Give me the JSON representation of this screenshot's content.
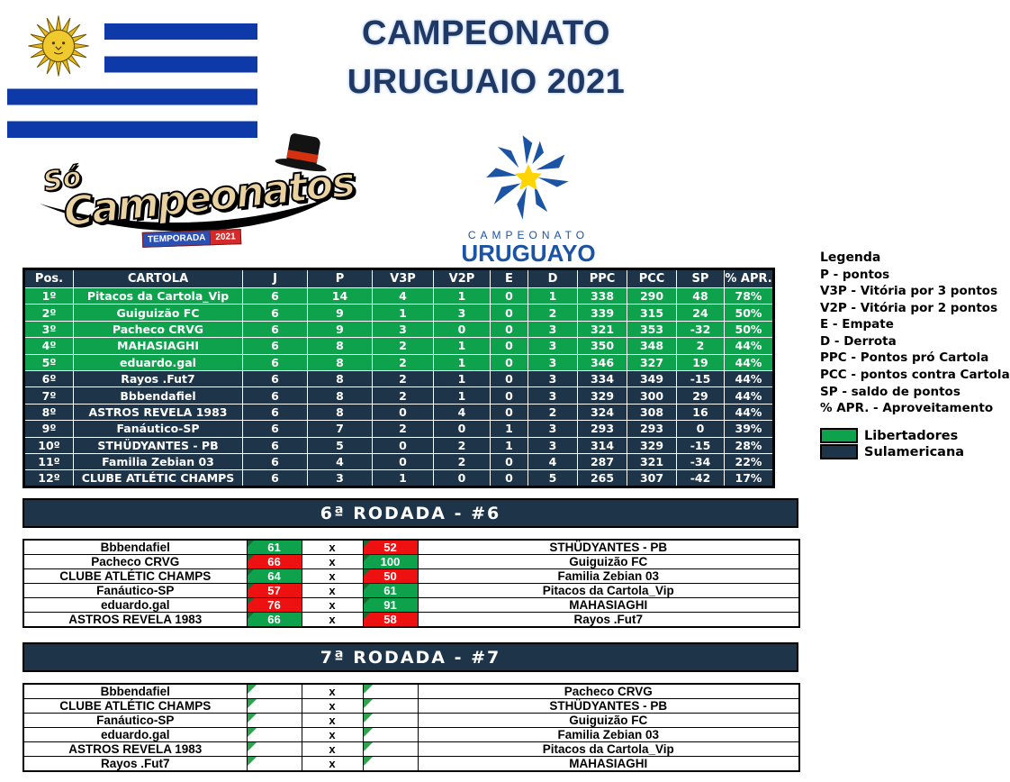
{
  "header": {
    "title_line1": "CAMPEONATO",
    "title_line2": "URUGUAIO 2021",
    "so_campeonatos": {
      "so": "Só",
      "name": "Campeonatos",
      "banner_left": "TEMPORADA",
      "banner_right": "2021"
    },
    "uruguayo_logo": {
      "line1": "CAMPEONATO",
      "line2": "URUGUAYO"
    }
  },
  "standings": {
    "columns": [
      "Pos.",
      "CARTOLA",
      "J",
      "P",
      "V3P",
      "V2P",
      "E",
      "D",
      "PPC",
      "PCC",
      "SP",
      "% APR."
    ],
    "rows": [
      {
        "pos": "1º",
        "cartola": "Pitacos da Cartola_Vip",
        "j": 6,
        "p": 14,
        "v3p": 4,
        "v2p": 1,
        "e": 0,
        "d": 1,
        "ppc": 338,
        "pcc": 290,
        "sp": 48,
        "apr": "78%",
        "zone": "libertadores"
      },
      {
        "pos": "2º",
        "cartola": "Guiguizão FC",
        "j": 6,
        "p": 9,
        "v3p": 1,
        "v2p": 3,
        "e": 0,
        "d": 2,
        "ppc": 339,
        "pcc": 315,
        "sp": 24,
        "apr": "50%",
        "zone": "libertadores"
      },
      {
        "pos": "3º",
        "cartola": "Pacheco CRVG",
        "j": 6,
        "p": 9,
        "v3p": 3,
        "v2p": 0,
        "e": 0,
        "d": 3,
        "ppc": 321,
        "pcc": 353,
        "sp": -32,
        "apr": "50%",
        "zone": "libertadores"
      },
      {
        "pos": "4º",
        "cartola": "MAHASIAGHI",
        "j": 6,
        "p": 8,
        "v3p": 2,
        "v2p": 1,
        "e": 0,
        "d": 3,
        "ppc": 350,
        "pcc": 348,
        "sp": 2,
        "apr": "44%",
        "zone": "libertadores"
      },
      {
        "pos": "5º",
        "cartola": "eduardo.gal",
        "j": 6,
        "p": 8,
        "v3p": 2,
        "v2p": 1,
        "e": 0,
        "d": 3,
        "ppc": 346,
        "pcc": 327,
        "sp": 19,
        "apr": "44%",
        "zone": "libertadores"
      },
      {
        "pos": "6º",
        "cartola": "Rayos .Fut7",
        "j": 6,
        "p": 8,
        "v3p": 2,
        "v2p": 1,
        "e": 0,
        "d": 3,
        "ppc": 334,
        "pcc": 349,
        "sp": -15,
        "apr": "44%",
        "zone": "sulamericana"
      },
      {
        "pos": "7º",
        "cartola": "Bbbendafiel",
        "j": 6,
        "p": 8,
        "v3p": 2,
        "v2p": 1,
        "e": 0,
        "d": 3,
        "ppc": 329,
        "pcc": 300,
        "sp": 29,
        "apr": "44%",
        "zone": "sulamericana"
      },
      {
        "pos": "8º",
        "cartola": "ASTROS REVELA 1983",
        "j": 6,
        "p": 8,
        "v3p": 0,
        "v2p": 4,
        "e": 0,
        "d": 2,
        "ppc": 324,
        "pcc": 308,
        "sp": 16,
        "apr": "44%",
        "zone": "sulamericana"
      },
      {
        "pos": "9º",
        "cartola": "Fanáutico-SP",
        "j": 6,
        "p": 7,
        "v3p": 2,
        "v2p": 0,
        "e": 1,
        "d": 3,
        "ppc": 293,
        "pcc": 293,
        "sp": 0,
        "apr": "39%",
        "zone": "sulamericana"
      },
      {
        "pos": "10º",
        "cartola": "STHÜDYANTES - PB",
        "j": 6,
        "p": 5,
        "v3p": 0,
        "v2p": 2,
        "e": 1,
        "d": 3,
        "ppc": 314,
        "pcc": 329,
        "sp": -15,
        "apr": "28%",
        "zone": "sulamericana"
      },
      {
        "pos": "11º",
        "cartola": "Familia Zebian 03",
        "j": 6,
        "p": 4,
        "v3p": 0,
        "v2p": 2,
        "e": 0,
        "d": 4,
        "ppc": 287,
        "pcc": 321,
        "sp": -34,
        "apr": "22%",
        "zone": "sulamericana"
      },
      {
        "pos": "12º",
        "cartola": "CLUBE ATLÉTIC CHAMPS",
        "j": 6,
        "p": 3,
        "v3p": 1,
        "v2p": 0,
        "e": 0,
        "d": 5,
        "ppc": 265,
        "pcc": 307,
        "sp": -42,
        "apr": "17%",
        "zone": "sulamericana"
      }
    ]
  },
  "legend": {
    "title": "Legenda",
    "items": [
      "P - pontos",
      "V3P - Vitória por 3 pontos",
      "V2P - Vitória por 2 pontos",
      "E - Empate",
      "D - Derrota",
      "PPC - Pontos pró Cartola",
      "PCC - pontos contra Cartola",
      "SP - saldo de pontos",
      "% APR. - Aproveitamento"
    ],
    "zones": [
      {
        "label": "Libertadores",
        "color": "#0FA24C"
      },
      {
        "label": "Sulamericana",
        "color": "#1E3448"
      }
    ]
  },
  "rounds": [
    {
      "title": "6ª RODADA - #6",
      "separator": "x",
      "matches": [
        {
          "home": "Bbbendafiel",
          "home_score": "61",
          "home_result": "win",
          "away_score": "52",
          "away_result": "loss",
          "away": "STHÜDYANTES - PB"
        },
        {
          "home": "Pacheco CRVG",
          "home_score": "66",
          "home_result": "loss",
          "away_score": "100",
          "away_result": "win",
          "away": "Guiguizão FC"
        },
        {
          "home": "CLUBE ATLÉTIC CHAMPS",
          "home_score": "64",
          "home_result": "win",
          "away_score": "50",
          "away_result": "loss",
          "away": "Familia Zebian 03"
        },
        {
          "home": "Fanáutico-SP",
          "home_score": "57",
          "home_result": "loss",
          "away_score": "61",
          "away_result": "win",
          "away": "Pitacos da Cartola_Vip"
        },
        {
          "home": "eduardo.gal",
          "home_score": "76",
          "home_result": "loss",
          "away_score": "91",
          "away_result": "win",
          "away": "MAHASIAGHI"
        },
        {
          "home": "ASTROS REVELA 1983",
          "home_score": "66",
          "home_result": "win",
          "away_score": "58",
          "away_result": "loss",
          "away": "Rayos .Fut7"
        }
      ]
    },
    {
      "title": "7ª RODADA - #7",
      "separator": "x",
      "matches": [
        {
          "home": "Bbbendafiel",
          "home_score": "",
          "away_score": "",
          "away": "Pacheco CRVG"
        },
        {
          "home": "CLUBE ATLÉTIC CHAMPS",
          "home_score": "",
          "away_score": "",
          "away": "STHÜDYANTES - PB"
        },
        {
          "home": "Fanáutico-SP",
          "home_score": "",
          "away_score": "",
          "away": "Guiguizão FC"
        },
        {
          "home": "eduardo.gal",
          "home_score": "",
          "away_score": "",
          "away": "Familia Zebian 03"
        },
        {
          "home": "ASTROS REVELA 1983",
          "home_score": "",
          "away_score": "",
          "away": "Pitacos da Cartola_Vip"
        },
        {
          "home": "Rayos .Fut7",
          "home_score": "",
          "away_score": "",
          "away": "MAHASIAGHI"
        }
      ]
    }
  ],
  "colors": {
    "navy": "#1E3448",
    "green": "#0FA24C",
    "red": "#EE1111",
    "flag_blue": "#0D3AA8",
    "title_navy": "#203864",
    "triangle_dark": "#156B33",
    "triangle_light": "#2FA352",
    "logo_blue": "#1B53A5"
  }
}
